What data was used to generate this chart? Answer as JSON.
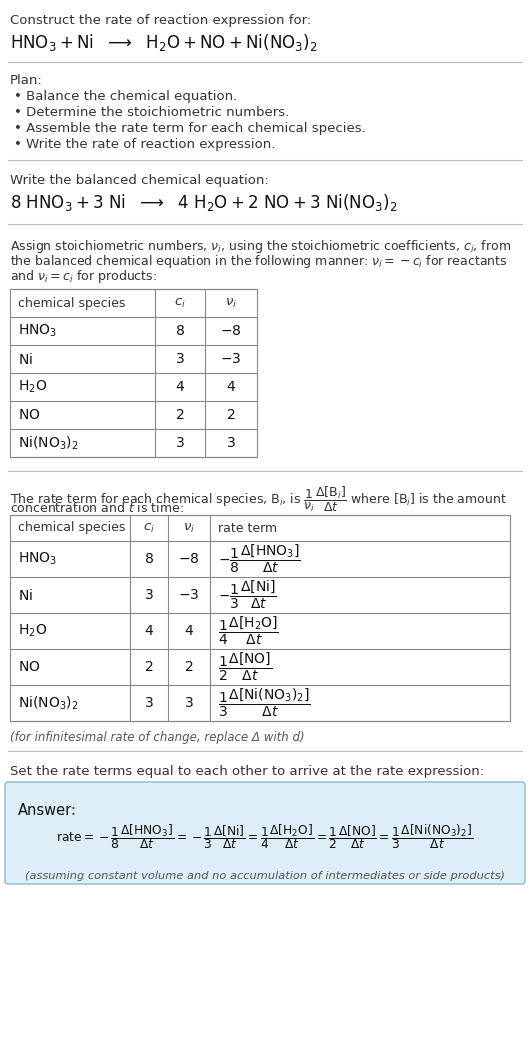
{
  "bg_color": "#ffffff",
  "text_color": "#111111",
  "gray_text": "#444444",
  "light_blue_bg": "#ddeef6",
  "border_color": "#aaaaaa",
  "title_text": "Construct the rate of reaction expression for:",
  "plan_header": "Plan:",
  "plan_items": [
    "• Balance the chemical equation.",
    "• Determine the stoichiometric numbers.",
    "• Assemble the rate term for each chemical species.",
    "• Write the rate of reaction expression."
  ],
  "balanced_header": "Write the balanced chemical equation:",
  "set_equal_header": "Set the rate terms equal to each other to arrive at the rate expression:",
  "answer_label": "Answer:",
  "answer_note": "(assuming constant volume and no accumulation of intermediates or side products)",
  "infinitesimal_note": "(for infinitesimal rate of change, replace Δ with d)",
  "table1_species": [
    "HNO_3",
    "Ni",
    "H_2O",
    "NO",
    "Ni(NO_3)_2"
  ],
  "table1_ci": [
    "8",
    "3",
    "4",
    "2",
    "3"
  ],
  "table1_vi": [
    "-8",
    "-3",
    "4",
    "2",
    "3"
  ],
  "table2_ci": [
    "8",
    "3",
    "4",
    "2",
    "3"
  ],
  "table2_vi": [
    "-8",
    "-3",
    "4",
    "2",
    "3"
  ]
}
